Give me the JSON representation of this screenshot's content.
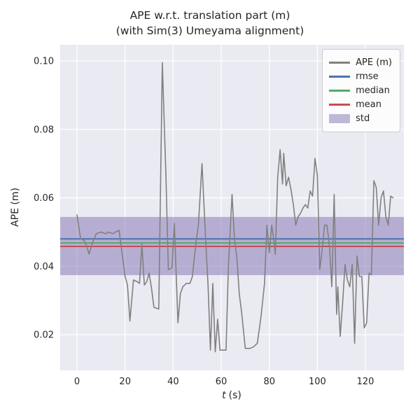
{
  "chart_data": {
    "type": "line",
    "title": "APE w.r.t. translation part (m)",
    "subtitle": "(with Sim(3) Umeyama alignment)",
    "xlabel": "t (s)",
    "xlabel_var": "t",
    "xlabel_rest": "(s)",
    "ylabel": "APE (m)",
    "xlim": [
      -7,
      136
    ],
    "ylim": [
      0.0096,
      0.1047
    ],
    "xticks": [
      0,
      20,
      40,
      60,
      80,
      100,
      120
    ],
    "yticks": [
      0.02,
      0.04,
      0.06,
      0.08,
      0.1
    ],
    "grid": true,
    "legend_position": "upper right",
    "colors": {
      "axes_bg": "#EAEAF2",
      "grid": "#FFFFFF",
      "text": "#262626"
    },
    "series": [
      {
        "name": "APE (m)",
        "color": "#808080",
        "x": [
          0,
          1.5,
          3,
          4,
          5,
          6.5,
          8,
          10,
          12,
          13,
          15,
          16,
          17.5,
          18.5,
          20,
          21,
          22,
          23.5,
          25,
          26,
          27,
          28,
          29,
          30,
          31,
          32,
          34,
          35.5,
          37,
          38,
          39.5,
          40.5,
          42,
          43,
          44,
          45.5,
          47,
          48,
          49.5,
          50.5,
          52,
          53.5,
          54.5,
          55.5,
          56.5,
          57.5,
          58.5,
          59.5,
          61,
          62,
          63,
          64.5,
          65.5,
          66.5,
          67.5,
          68.5,
          70,
          72,
          73.5,
          75,
          76.5,
          78,
          79,
          80,
          81,
          82,
          82.5,
          83.5,
          84.5,
          85.5,
          86,
          87,
          88,
          89,
          90,
          91,
          92,
          93,
          94,
          95,
          96,
          97,
          98,
          99,
          100,
          101,
          102,
          103,
          104,
          105,
          106,
          107,
          108,
          108.5,
          109.5,
          110.5,
          111.5,
          112.5,
          113.5,
          114.5,
          115.5,
          116.5,
          117.5,
          118.5,
          119.5,
          120.5,
          121.5,
          122.5,
          123.5,
          124.5,
          125.5,
          126.5,
          127.5,
          128.5,
          129.5,
          130.5,
          131.5
        ],
        "y": [
          0.055,
          0.048,
          0.0475,
          0.046,
          0.0435,
          0.047,
          0.0495,
          0.05,
          0.0495,
          0.05,
          0.0495,
          0.05,
          0.0505,
          0.045,
          0.037,
          0.0345,
          0.024,
          0.036,
          0.0355,
          0.035,
          0.0465,
          0.0345,
          0.0355,
          0.038,
          0.0335,
          0.028,
          0.0275,
          0.0995,
          0.066,
          0.039,
          0.0395,
          0.0525,
          0.0235,
          0.032,
          0.034,
          0.035,
          0.035,
          0.037,
          0.047,
          0.052,
          0.07,
          0.048,
          0.0345,
          0.0155,
          0.035,
          0.015,
          0.0245,
          0.0155,
          0.0155,
          0.0155,
          0.04,
          0.061,
          0.048,
          0.0425,
          0.032,
          0.0265,
          0.016,
          0.016,
          0.0165,
          0.0175,
          0.025,
          0.035,
          0.052,
          0.044,
          0.052,
          0.047,
          0.0435,
          0.066,
          0.074,
          0.064,
          0.073,
          0.0635,
          0.066,
          0.0625,
          0.058,
          0.052,
          0.0545,
          0.0555,
          0.057,
          0.058,
          0.057,
          0.062,
          0.0605,
          0.0715,
          0.0665,
          0.039,
          0.045,
          0.052,
          0.052,
          0.046,
          0.034,
          0.061,
          0.026,
          0.034,
          0.0195,
          0.029,
          0.0405,
          0.036,
          0.034,
          0.0405,
          0.0175,
          0.043,
          0.037,
          0.037,
          0.022,
          0.0235,
          0.038,
          0.0375,
          0.065,
          0.063,
          0.052,
          0.06,
          0.062,
          0.0545,
          0.052,
          0.0605,
          0.06
        ]
      }
    ],
    "stat_lines": [
      {
        "name": "rmse",
        "color": "#4C72B0",
        "value": 0.048
      },
      {
        "name": "median",
        "color": "#55A868",
        "value": 0.0468
      },
      {
        "name": "mean",
        "color": "#C44E52",
        "value": 0.0458
      }
    ],
    "band": {
      "name": "std",
      "color": "#8172B2",
      "opacity": 0.5,
      "ymin": 0.0374,
      "ymax": 0.0544
    },
    "legend": {
      "items": [
        {
          "label": "APE (m)",
          "type": "line",
          "color": "#808080"
        },
        {
          "label": "rmse",
          "type": "line",
          "color": "#4C72B0"
        },
        {
          "label": "median",
          "type": "line",
          "color": "#55A868"
        },
        {
          "label": "mean",
          "type": "line",
          "color": "#C44E52"
        },
        {
          "label": "std",
          "type": "patch",
          "color": "#8172B2"
        }
      ]
    }
  }
}
